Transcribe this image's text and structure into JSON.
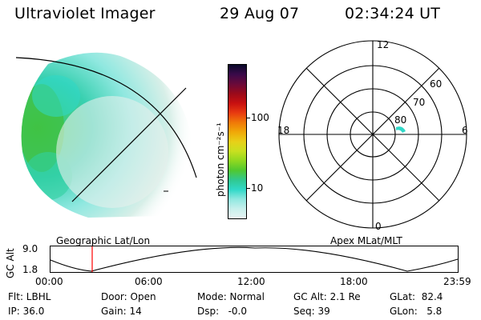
{
  "header": {
    "instrument": "Ultraviolet Imager",
    "date": "29 Aug 07",
    "time": "02:34:24 UT"
  },
  "colorbar": {
    "unit_label": "photon cm⁻²s⁻¹",
    "ticks": [
      "100",
      "10"
    ],
    "colors": [
      "#0a0a2a",
      "#3a0a4a",
      "#6a0a3a",
      "#9a0a1a",
      "#c81010",
      "#e83a10",
      "#f07808",
      "#f0a808",
      "#e8d018",
      "#c8e020",
      "#90d820",
      "#50c830",
      "#30c890",
      "#30d8c8",
      "#90e8e0",
      "#c8f0ec",
      "#e8f4f4"
    ]
  },
  "polar": {
    "mlt_labels": [
      "12",
      "18",
      "6",
      "0"
    ],
    "lat_labels": [
      "60",
      "70",
      "80"
    ]
  },
  "timeline": {
    "y_axis_label": "GC Alt",
    "y_ticks": [
      "9.0",
      "1.8"
    ],
    "left_title": "Geographic Lat/Lon",
    "right_title": "Apex MLat/MLT",
    "x_ticks": [
      "00:00",
      "06:00",
      "12:00",
      "18:00",
      "23:59"
    ],
    "marker_color": "#ff0000"
  },
  "status": {
    "flt": "Flt: LBHL",
    "ip": "IP: 36.0",
    "door": "Door: Open",
    "gain": "Gain: 14",
    "mode": "Mode: Normal",
    "dsp": "Dsp:   -0.0",
    "gcalt": "GC Alt: 2.1 Re",
    "seq": "Seq: 39",
    "glat": "GLat:  82.4",
    "glon": "GLon:   5.8"
  }
}
